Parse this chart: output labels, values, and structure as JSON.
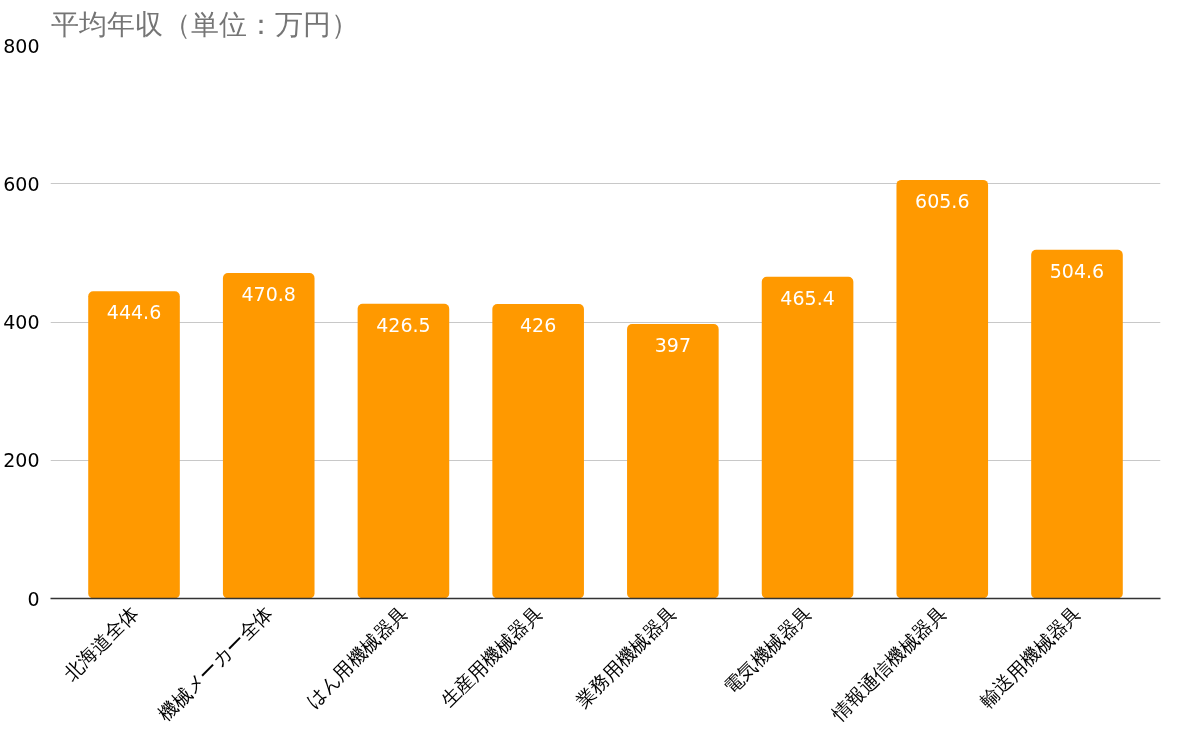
{
  "chart_data": {
    "type": "bar",
    "title": "平均年収（単位：万円）",
    "categories": [
      "北海道全体",
      "機械メーカー全体",
      "はん用機械器具",
      "生産用機械器具",
      "業務用機械器具",
      "電気機械器具",
      "情報通信機械器具",
      "輸送用機械器具"
    ],
    "values": [
      444.6,
      470.8,
      426.5,
      426,
      397,
      465.4,
      605.6,
      504.6
    ],
    "color": "#ff9900",
    "ylim": [
      0,
      800
    ],
    "yticks": [
      0,
      200,
      400,
      600,
      800
    ],
    "grid": "y",
    "data_labels": true
  }
}
